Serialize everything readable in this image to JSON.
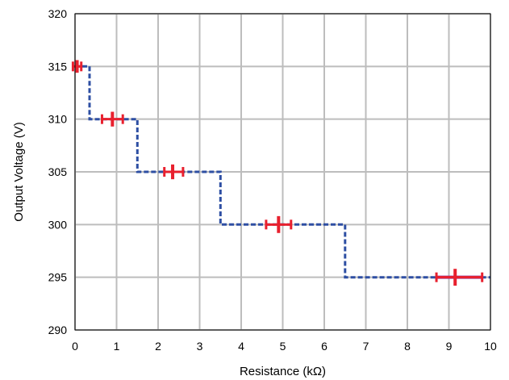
{
  "chart_data": {
    "type": "line",
    "title": "",
    "xlabel": "Resistance (kΩ)",
    "ylabel": "Output Voltage (V)",
    "xlim": [
      0,
      10
    ],
    "ylim": [
      290,
      320
    ],
    "x_ticks": [
      0,
      1,
      2,
      3,
      4,
      5,
      6,
      7,
      8,
      9,
      10
    ],
    "y_ticks": [
      290,
      295,
      300,
      305,
      310,
      315,
      320
    ],
    "grid": true,
    "series": [
      {
        "type": "step",
        "color": "#2e4fa3",
        "style": "dashed",
        "points": [
          [
            0,
            315
          ],
          [
            0.35,
            315
          ],
          [
            0.35,
            310
          ],
          [
            1.5,
            310
          ],
          [
            1.5,
            305
          ],
          [
            3.5,
            305
          ],
          [
            3.5,
            300
          ],
          [
            6.5,
            300
          ],
          [
            6.5,
            295
          ],
          [
            10,
            295
          ]
        ]
      },
      {
        "type": "errorbar",
        "color": "#e8202e",
        "points": [
          {
            "x": 0.05,
            "y": 315,
            "xmin": -0.05,
            "xmax": 0.15,
            "yerr": 0.6
          },
          {
            "x": 0.9,
            "y": 310,
            "xmin": 0.65,
            "xmax": 1.15,
            "yerr": 0.7
          },
          {
            "x": 2.35,
            "y": 305,
            "xmin": 2.15,
            "xmax": 2.6,
            "yerr": 0.7
          },
          {
            "x": 4.9,
            "y": 300,
            "xmin": 4.6,
            "xmax": 5.2,
            "yerr": 0.8
          },
          {
            "x": 9.15,
            "y": 295,
            "xmin": 8.7,
            "xmax": 9.8,
            "yerr": 0.8
          }
        ]
      }
    ],
    "highlight_segment": {
      "x": [
        8.7,
        9.8
      ],
      "y": 295,
      "color": "#8b3a9e"
    }
  }
}
